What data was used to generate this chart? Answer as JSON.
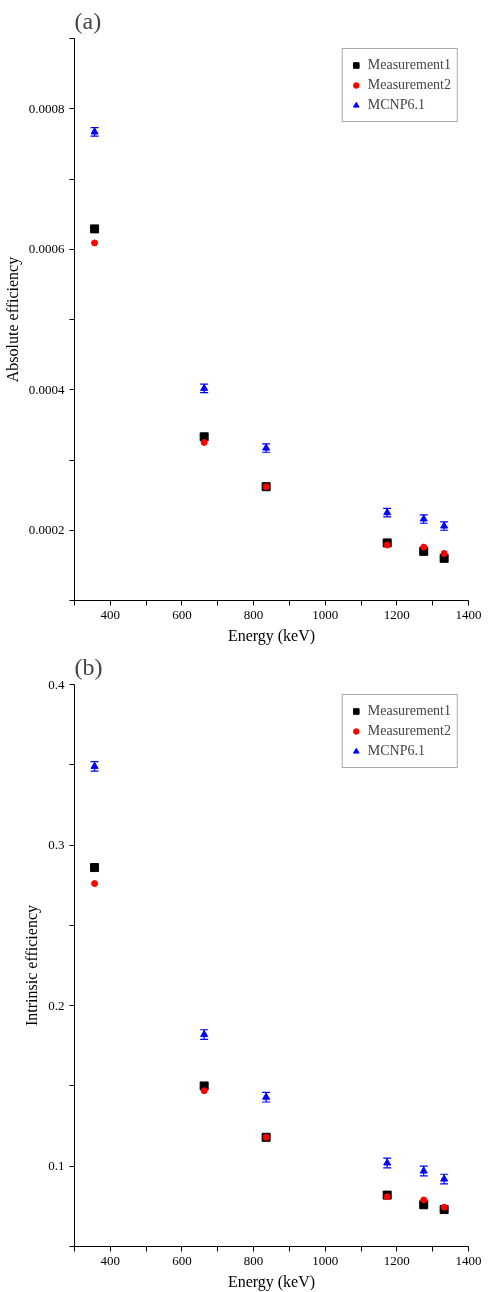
{
  "chart_data": [
    {
      "type": "scatter",
      "title": "(a)",
      "xlabel": "Energy (keV)",
      "ylabel": "Absolute efficiency",
      "x": [
        356,
        662,
        835,
        1173,
        1275,
        1332
      ],
      "xlim": [
        300,
        1400
      ],
      "xticks": [
        {
          "value": 300,
          "label": null
        },
        400,
        {
          "value": 500,
          "label": null
        },
        600,
        {
          "value": 700,
          "label": null
        },
        800,
        {
          "value": 900,
          "label": null
        },
        1000,
        {
          "value": 1100,
          "label": null
        },
        1200,
        {
          "value": 1300,
          "label": null
        },
        1400
      ],
      "ylim": [
        0.0001,
        0.0009
      ],
      "yticks": [
        {
          "value": 0.0001,
          "label": null
        },
        0.0002,
        {
          "value": 0.0003,
          "label": null
        },
        0.0004,
        {
          "value": 0.0005,
          "label": null
        },
        0.0006,
        {
          "value": 0.0007,
          "label": null
        },
        0.0008,
        {
          "value": 0.0009,
          "label": null
        }
      ],
      "legend": "top right",
      "series": [
        {
          "name": "Measurement1",
          "color": "#000000",
          "marker": "square",
          "values": [
            0.000629,
            0.000333,
            0.000262,
            0.000182,
            0.00017,
            0.00016
          ]
        },
        {
          "name": "Measurement2",
          "color": "#ff0000",
          "marker": "circle",
          "values": [
            0.000609,
            0.000325,
            0.000262,
            0.000179,
            0.000176,
            0.000167
          ]
        },
        {
          "name": "MCNP6.1",
          "color": "#0000ff",
          "marker": "triangle",
          "values": [
            0.000767,
            0.000402,
            0.000317,
            0.000225,
            0.000216,
            0.000206
          ],
          "errors": [
            6e-06,
            6e-06,
            6e-06,
            6e-06,
            6e-06,
            6e-06
          ]
        }
      ]
    },
    {
      "type": "scatter",
      "title": "(b)",
      "xlabel": "Energy (keV)",
      "ylabel": "Intrinsic efficiency",
      "x": [
        356,
        662,
        835,
        1173,
        1275,
        1332
      ],
      "xlim": [
        300,
        1400
      ],
      "xticks": [
        {
          "value": 300,
          "label": null
        },
        400,
        {
          "value": 500,
          "label": null
        },
        600,
        {
          "value": 700,
          "label": null
        },
        800,
        {
          "value": 900,
          "label": null
        },
        1000,
        {
          "value": 1100,
          "label": null
        },
        1200,
        {
          "value": 1300,
          "label": null
        },
        1400
      ],
      "ylim": [
        0.05,
        0.4
      ],
      "yticks": [
        {
          "value": 0.05,
          "label": null
        },
        0.1,
        {
          "value": 0.15,
          "label": null
        },
        0.2,
        {
          "value": 0.25,
          "label": null
        },
        0.3,
        {
          "value": 0.35,
          "label": null
        },
        0.4
      ],
      "legend": "top right",
      "series": [
        {
          "name": "Measurement1",
          "color": "#000000",
          "marker": "square",
          "values": [
            0.286,
            0.15,
            0.118,
            0.082,
            0.076,
            0.073
          ]
        },
        {
          "name": "Measurement2",
          "color": "#ff0000",
          "marker": "circle",
          "values": [
            0.276,
            0.147,
            0.118,
            0.081,
            0.079,
            0.0745
          ]
        },
        {
          "name": "MCNP6.1",
          "color": "#0000ff",
          "marker": "triangle",
          "values": [
            0.349,
            0.182,
            0.143,
            0.102,
            0.097,
            0.092
          ],
          "errors": [
            0.003,
            0.003,
            0.003,
            0.003,
            0.003,
            0.003
          ]
        }
      ]
    }
  ]
}
